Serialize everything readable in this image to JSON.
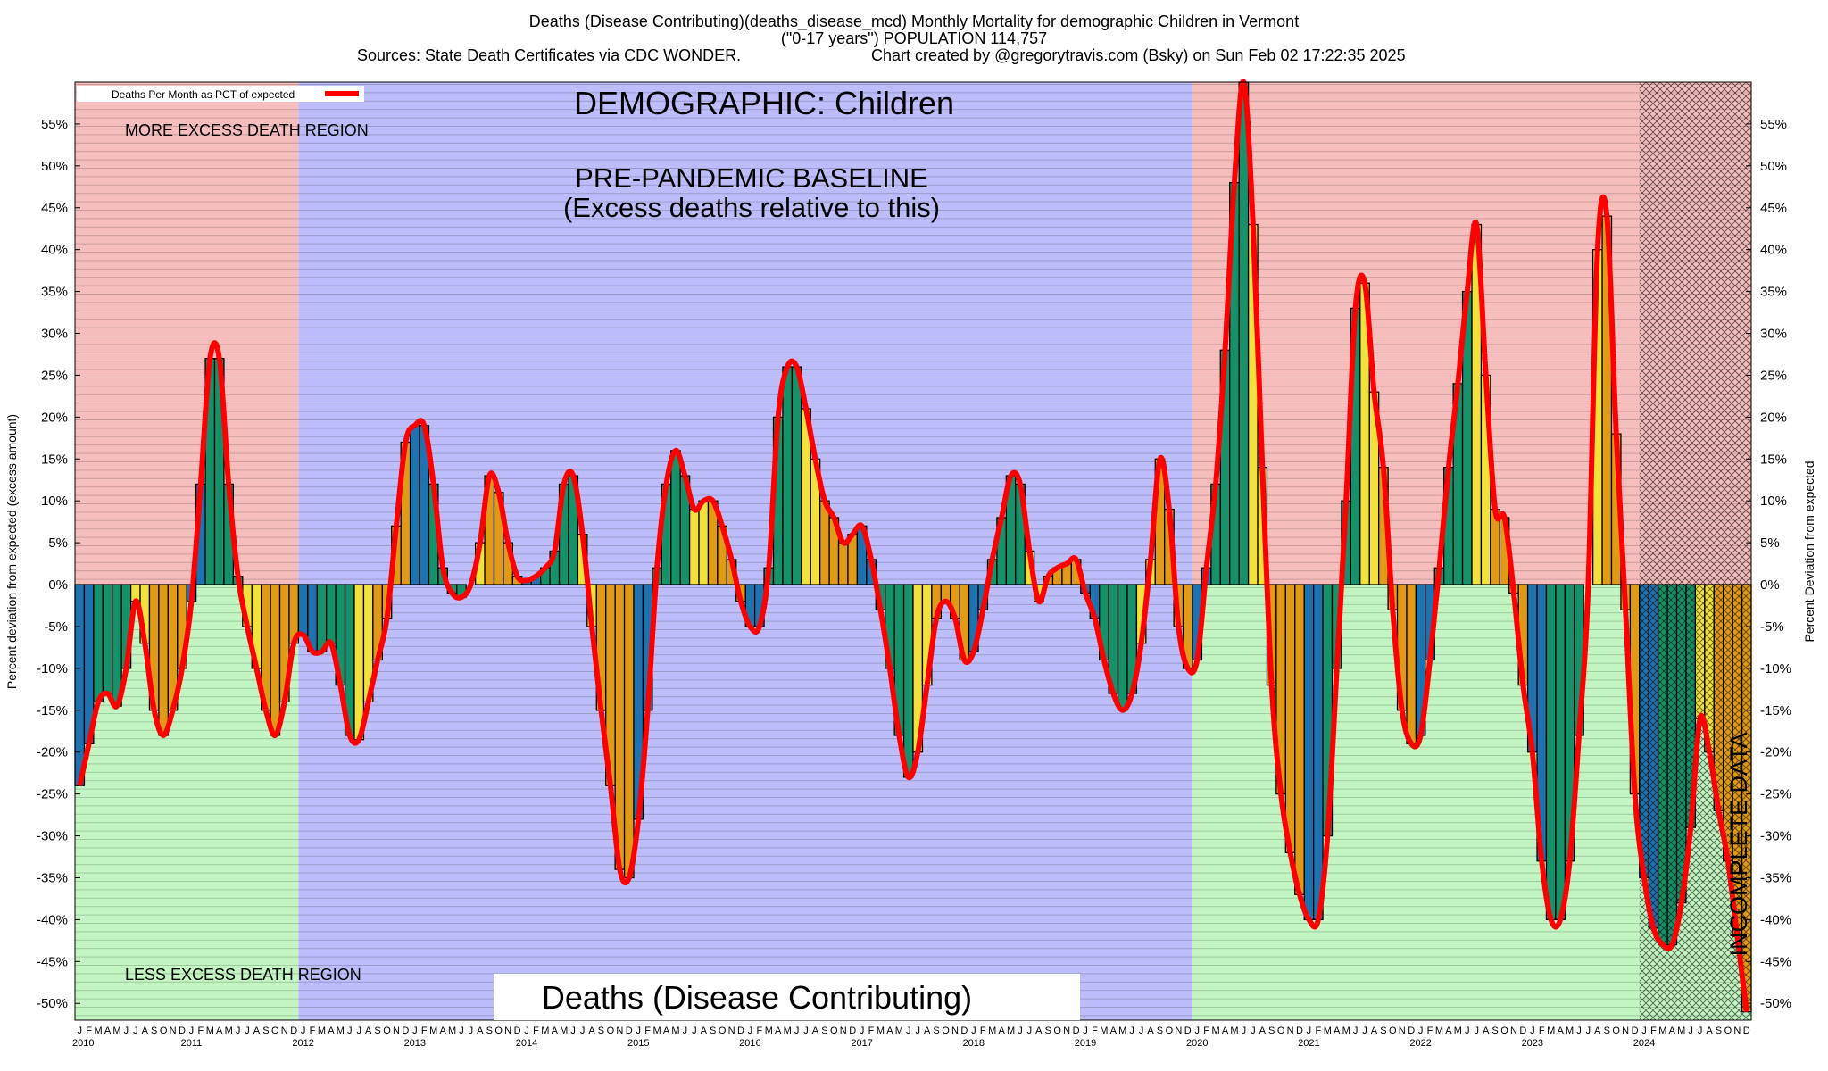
{
  "chart_data": {
    "type": "bar",
    "title": "Deaths (Disease Contributing)(deaths_disease_mcd) Monthly Mortality for demographic Children in Vermont",
    "subtitle": "(\"0-17 years\") POPULATION 114,757",
    "source": "Sources: State Death Certificates via CDC WONDER.",
    "credit": "Chart created by @gregorytravis.com (Bsky) on Sun Feb 02 17:22:35 2025",
    "demographic_label": "DEMOGRAPHIC: Children",
    "baseline_label": "PRE-PANDEMIC BASELINE",
    "baseline_note": "(Excess deaths relative to this)",
    "upper_region_label": "MORE EXCESS DEATH REGION",
    "lower_region_label": "LESS EXCESS DEATH REGION",
    "metric_label": "Deaths (Disease Contributing)",
    "incomplete_label": "INCOMPLETE DATA",
    "y_label": "Percent deviation from expected (excess amount)",
    "y2_label": "Percent Deviation from expected",
    "legend": "Deaths Per Month as PCT of expected",
    "line_color": "#ff0000",
    "months": [
      "J",
      "F",
      "M",
      "A",
      "M",
      "J",
      "J",
      "A",
      "S",
      "O",
      "N",
      "D"
    ],
    "month_colors": [
      "#1f72b0",
      "#1f72b0",
      "#16916a",
      "#16916a",
      "#16916a",
      "#16916a",
      "#f2e03c",
      "#f2e03c",
      "#e09a18",
      "#e09a18",
      "#e09a18",
      "#e09a18"
    ],
    "years": [
      "2010",
      "2011",
      "2012",
      "2013",
      "2014",
      "2015",
      "2016",
      "2017",
      "2018",
      "2019",
      "2020",
      "2021",
      "2022",
      "2023",
      "2024"
    ],
    "values": [
      -24,
      -19,
      -14,
      -13,
      -14.5,
      -10,
      -2,
      -7,
      -15,
      -18,
      -15,
      -10,
      -2,
      12,
      27,
      27,
      12,
      1,
      -5,
      -10,
      -15,
      -18,
      -14,
      -7,
      -6,
      -8,
      -8,
      -7,
      -12,
      -18,
      -18.5,
      -14,
      -9,
      -4,
      7,
      17,
      19,
      19,
      12,
      2,
      -1,
      -1.5,
      0,
      5,
      13,
      11,
      5,
      1,
      0.5,
      1,
      2,
      4,
      12,
      13,
      6,
      -5,
      -15,
      -24,
      -34,
      -35,
      -28,
      -15,
      2,
      12,
      16,
      13,
      9,
      10,
      10,
      7,
      3,
      -2,
      -5,
      -5,
      2,
      20,
      26,
      26,
      21,
      15,
      10,
      8,
      5,
      6,
      7,
      3,
      -3,
      -10,
      -18,
      -23,
      -20,
      -12,
      -4,
      -2,
      -4,
      -9,
      -8,
      -3,
      3,
      8,
      13,
      12,
      4,
      -2,
      1,
      2,
      2.5,
      3,
      -1,
      -4,
      -9,
      -13,
      -15,
      -13,
      -7,
      3,
      15,
      9,
      -5,
      -10,
      -9,
      2,
      12,
      28,
      48,
      60,
      43,
      14,
      -12,
      -25,
      -32,
      -37,
      -40,
      -40,
      -30,
      -10,
      10,
      33,
      36,
      23,
      14,
      -3,
      -15,
      -19,
      -18,
      -9,
      2,
      14,
      24,
      35,
      43,
      25,
      9,
      8,
      -1,
      -12,
      -20,
      -33,
      -40,
      -40,
      -33,
      -18,
      0,
      40,
      44,
      18,
      -3,
      -25,
      -35,
      -41,
      -43,
      -43,
      -38,
      -29,
      -16,
      -20,
      -27,
      -33,
      -42,
      -51
    ],
    "ylim": [
      -52,
      60
    ],
    "yticks": [
      {
        "value": -50,
        "label": "-50%"
      },
      {
        "value": -45,
        "label": "-45%"
      },
      {
        "value": -40,
        "label": "-40%"
      },
      {
        "value": -35,
        "label": "-35%"
      },
      {
        "value": -30,
        "label": "-30%"
      },
      {
        "value": -25,
        "label": "-25%"
      },
      {
        "value": -20,
        "label": "-20%"
      },
      {
        "value": -15,
        "label": "-15%"
      },
      {
        "value": -10,
        "label": "-10%"
      },
      {
        "value": -5,
        "label": "-5%"
      },
      {
        "value": 0,
        "label": "0%"
      },
      {
        "value": 5,
        "label": "5%"
      },
      {
        "value": 10,
        "label": "10%"
      },
      {
        "value": 15,
        "label": "15%"
      },
      {
        "value": 20,
        "label": "20%"
      },
      {
        "value": 25,
        "label": "25%"
      },
      {
        "value": 30,
        "label": "30%"
      },
      {
        "value": 35,
        "label": "35%"
      },
      {
        "value": 40,
        "label": "40%"
      },
      {
        "value": 45,
        "label": "45%"
      },
      {
        "value": 50,
        "label": "50%"
      },
      {
        "value": 55,
        "label": "55%"
      }
    ]
  }
}
